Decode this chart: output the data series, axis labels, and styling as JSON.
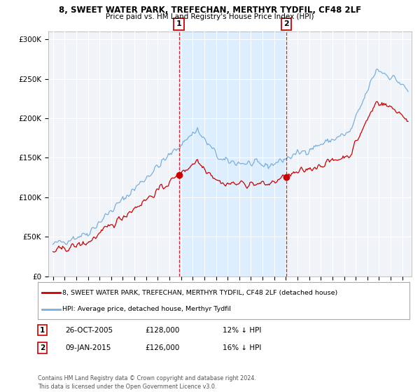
{
  "title1": "8, SWEET WATER PARK, TREFECHAN, MERTHYR TYDFIL, CF48 2LF",
  "title2": "Price paid vs. HM Land Registry's House Price Index (HPI)",
  "legend_line1": "8, SWEET WATER PARK, TREFECHAN, MERTHYR TYDFIL, CF48 2LF (detached house)",
  "legend_line2": "HPI: Average price, detached house, Merthyr Tydfil",
  "annotation1_date": "26-OCT-2005",
  "annotation1_price": "£128,000",
  "annotation1_hpi": "12% ↓ HPI",
  "annotation2_date": "09-JAN-2015",
  "annotation2_price": "£126,000",
  "annotation2_hpi": "16% ↓ HPI",
  "footnote": "Contains HM Land Registry data © Crown copyright and database right 2024.\nThis data is licensed under the Open Government Licence v3.0.",
  "property_color": "#cc0000",
  "hpi_color": "#7aafdd",
  "sale1_date_num": 2005.82,
  "sale1_price": 128000,
  "sale2_date_num": 2015.03,
  "sale2_price": 126000,
  "shade_color": "#ddeeff",
  "background_plot": "#f0f4f8",
  "background_fig": "#ffffff",
  "ylim": [
    0,
    310000
  ],
  "xlim_start": 1994.6,
  "xlim_end": 2025.8
}
